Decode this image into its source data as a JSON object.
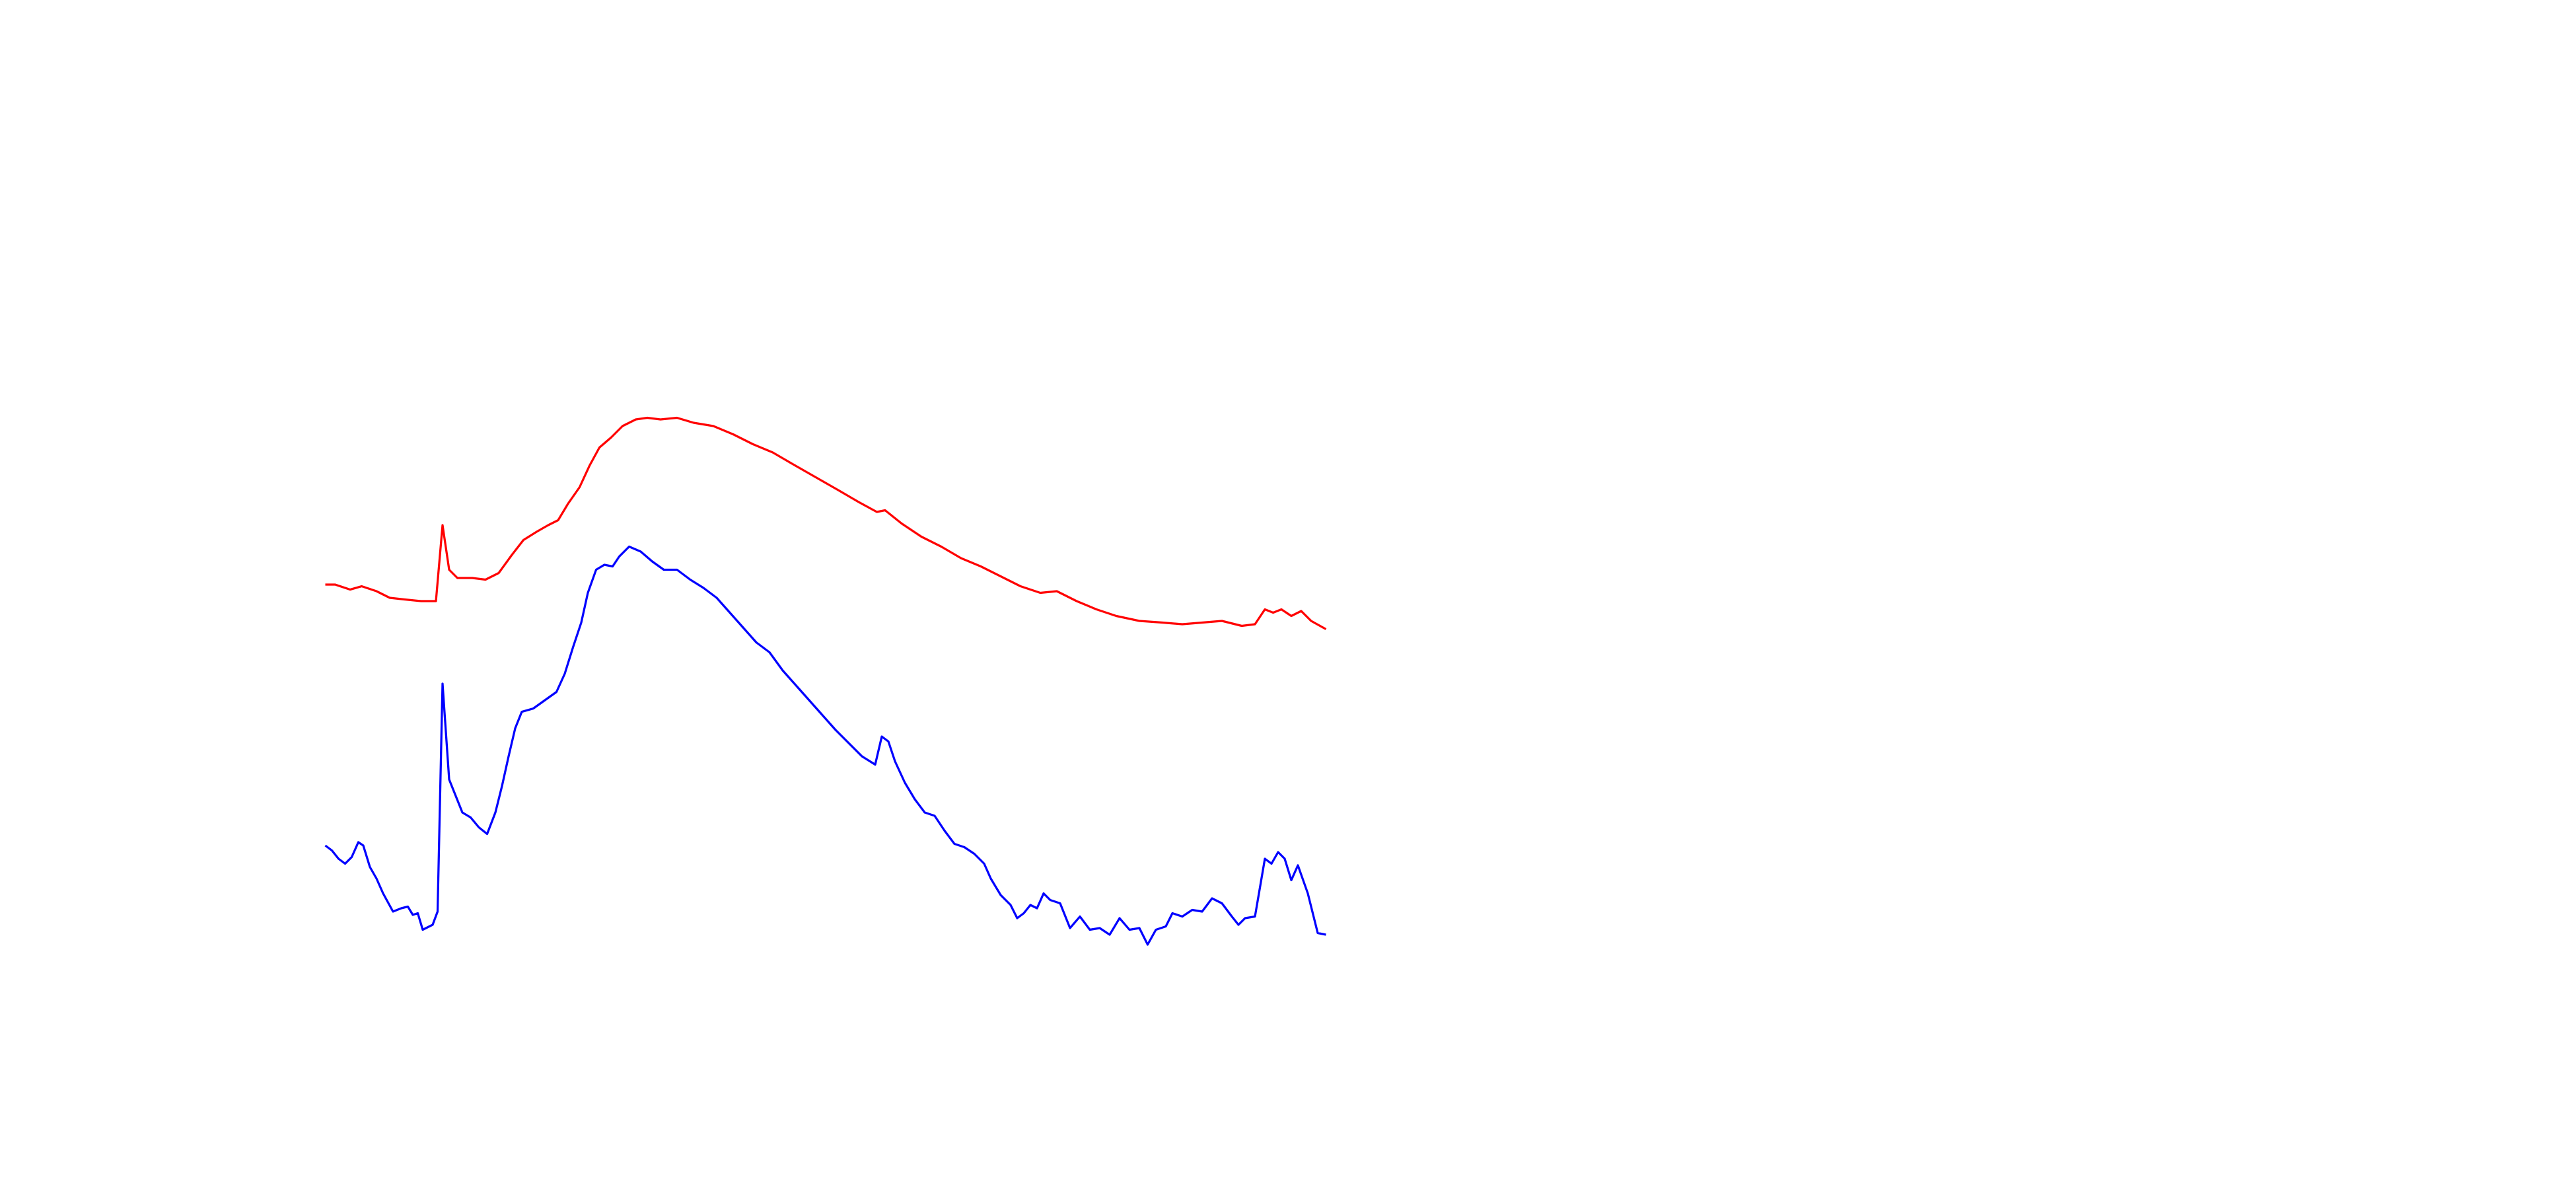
{
  "chart_data": {
    "type": "line",
    "xlim": [
      0,
      1560
    ],
    "ylim": [
      0,
      720
    ],
    "series": [
      {
        "color": "#ff0000",
        "x": [
          197,
          203,
          212,
          219,
          228,
          236,
          245,
          255,
          264,
          268,
          272,
          277,
          286,
          294,
          302,
          310,
          317,
          325,
          332,
          338,
          344,
          351,
          357,
          363,
          370,
          377,
          385,
          392,
          400,
          410,
          420,
          432,
          444,
          456,
          468,
          480,
          494,
          508,
          520,
          531,
          536,
          546,
          558,
          570,
          582,
          594,
          606,
          618,
          630,
          640,
          652,
          664,
          676,
          690,
          704,
          716,
          728,
          740,
          752,
          760,
          766,
          771,
          776,
          782,
          788,
          794,
          803
        ],
        "values": [
          366,
          366,
          363,
          365,
          362,
          358,
          357,
          356,
          356,
          402,
          375,
          370,
          370,
          369,
          373,
          384,
          393,
          398,
          402,
          405,
          415,
          425,
          438,
          449,
          455,
          462,
          466,
          467,
          466,
          467,
          464,
          462,
          457,
          451,
          446,
          439,
          431,
          423,
          416,
          410,
          411,
          403,
          395,
          389,
          382,
          377,
          371,
          365,
          361,
          362,
          356,
          351,
          347,
          344,
          343,
          342,
          343,
          344,
          341,
          342,
          351,
          349,
          351,
          347,
          350,
          344,
          339
        ]
      },
      {
        "color": "#0000ff",
        "x": [
          197,
          201,
          205,
          209,
          213,
          217,
          220,
          224,
          228,
          232,
          238,
          243,
          247,
          250,
          253,
          256,
          262,
          265,
          268,
          272,
          276,
          280,
          285,
          290,
          295,
          300,
          304,
          308,
          312,
          316,
          323,
          330,
          337,
          342,
          347,
          352,
          356,
          361,
          366,
          371,
          375,
          381,
          388,
          395,
          402,
          410,
          418,
          426,
          434,
          442,
          450,
          458,
          466,
          474,
          482,
          490,
          498,
          506,
          514,
          522,
          530,
          534,
          538,
          542,
          548,
          554,
          560,
          566,
          572,
          578,
          584,
          590,
          596,
          600,
          606,
          612,
          616,
          620,
          624,
          628,
          632,
          636,
          642,
          648,
          654,
          660,
          666,
          672,
          678,
          684,
          690,
          695,
          700,
          706,
          710,
          716,
          722,
          728,
          734,
          740,
          746,
          750,
          754,
          760,
          766,
          770,
          774,
          778,
          782,
          786,
          792,
          798,
          803
        ],
        "values": [
          208,
          205,
          200,
          197,
          201,
          210,
          208,
          195,
          188,
          179,
          168,
          170,
          171,
          166,
          167,
          157,
          160,
          168,
          306,
          248,
          238,
          228,
          225,
          219,
          215,
          228,
          244,
          262,
          279,
          289,
          291,
          296,
          301,
          312,
          328,
          343,
          361,
          375,
          378,
          377,
          383,
          389,
          386,
          380,
          375,
          375,
          369,
          364,
          358,
          349,
          340,
          331,
          325,
          314,
          305,
          296,
          287,
          278,
          270,
          262,
          257,
          274,
          271,
          259,
          246,
          236,
          228,
          226,
          217,
          209,
          207,
          203,
          197,
          188,
          178,
          172,
          164,
          167,
          172,
          170,
          179,
          175,
          173,
          158,
          165,
          157,
          158,
          154,
          164,
          157,
          158,
          148,
          157,
          159,
          167,
          165,
          169,
          168,
          176,
          173,
          165,
          160,
          164,
          165,
          200,
          197,
          204,
          200,
          187,
          196,
          179,
          155,
          154
        ]
      }
    ]
  }
}
